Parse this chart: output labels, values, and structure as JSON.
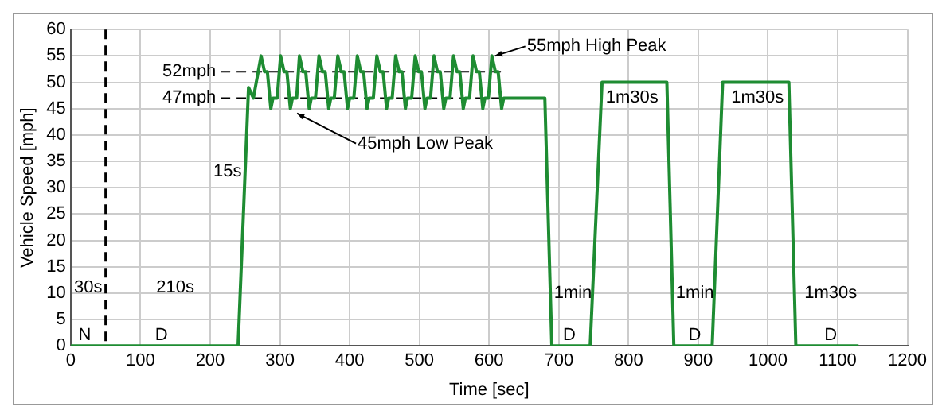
{
  "chart_data": {
    "type": "line",
    "xlabel": "Time [sec]",
    "ylabel": "Vehicle Speed [mph]",
    "xlim": [
      0,
      1200
    ],
    "xticks": [
      0,
      100,
      200,
      300,
      400,
      500,
      600,
      700,
      800,
      900,
      {
        "value": 1000,
        "label": "1000"
      },
      {
        "value": 1100,
        "label": "1100"
      },
      {
        "value": 1200,
        "label": "1200"
      }
    ],
    "ylim": [
      0,
      60
    ],
    "yticks": [
      0,
      5,
      10,
      15,
      20,
      25,
      30,
      35,
      40,
      45,
      50,
      55,
      60
    ],
    "grid": true,
    "legend": false,
    "marker": "none",
    "series": [
      {
        "color": "#1e8c32",
        "line_style": "solid",
        "x": [
          0,
          240,
          255,
          262,
          273,
          278,
          282,
          287,
          290,
          296,
          301,
          306,
          310,
          315,
          318,
          324,
          328,
          333,
          337,
          342,
          345,
          351,
          356,
          361,
          365,
          370,
          373,
          378,
          383,
          388,
          392,
          397,
          400,
          406,
          411,
          416,
          420,
          425,
          428,
          434,
          439,
          444,
          448,
          453,
          456,
          461,
          466,
          471,
          475,
          480,
          483,
          489,
          494,
          499,
          503,
          508,
          511,
          516,
          521,
          526,
          530,
          535,
          538,
          544,
          549,
          554,
          558,
          563,
          566,
          572,
          577,
          582,
          586,
          591,
          594,
          599,
          604,
          609,
          613,
          618,
          621,
          680,
          690,
          745,
          762,
          855,
          865,
          920,
          935,
          1030,
          1040,
          1130
        ],
        "values": [
          0,
          0,
          49,
          47,
          55,
          52,
          52,
          45,
          47,
          47,
          55,
          52,
          52,
          45,
          47,
          47,
          55,
          52,
          52,
          45,
          47,
          47,
          55,
          52,
          52,
          45,
          47,
          47,
          55,
          52,
          52,
          45,
          47,
          47,
          55,
          52,
          52,
          45,
          47,
          47,
          55,
          52,
          52,
          45,
          47,
          47,
          55,
          52,
          52,
          45,
          47,
          47,
          55,
          52,
          52,
          45,
          47,
          47,
          55,
          52,
          52,
          45,
          47,
          47,
          55,
          52,
          52,
          45,
          47,
          47,
          55,
          52,
          52,
          45,
          47,
          47,
          55,
          52,
          52,
          45,
          47,
          47,
          0,
          0,
          50,
          50,
          0,
          0,
          50,
          50,
          0,
          0
        ]
      },
      {
        "color": "#000000",
        "line_style": "dashed",
        "x": [
          215,
          620
        ],
        "values": [
          52,
          52
        ]
      },
      {
        "color": "#000000",
        "line_style": "dashed",
        "x": [
          215,
          620
        ],
        "values": [
          47,
          47
        ]
      }
    ],
    "ref_lines": [
      {
        "axis": "x",
        "value": 50,
        "color": "#000000",
        "line_style": "dashed"
      }
    ],
    "annotations": [
      {
        "text": "55mph High Peak",
        "x": 604,
        "y": 55
      },
      {
        "text": "45mph Low Peak",
        "x": 320,
        "y": 45
      },
      "52mph",
      "47mph",
      "15s",
      "30s",
      "210s",
      "N",
      "D",
      "1min",
      "1m30s",
      "D",
      "1min",
      "D",
      "1m30s",
      "1m30s",
      "D"
    ]
  }
}
